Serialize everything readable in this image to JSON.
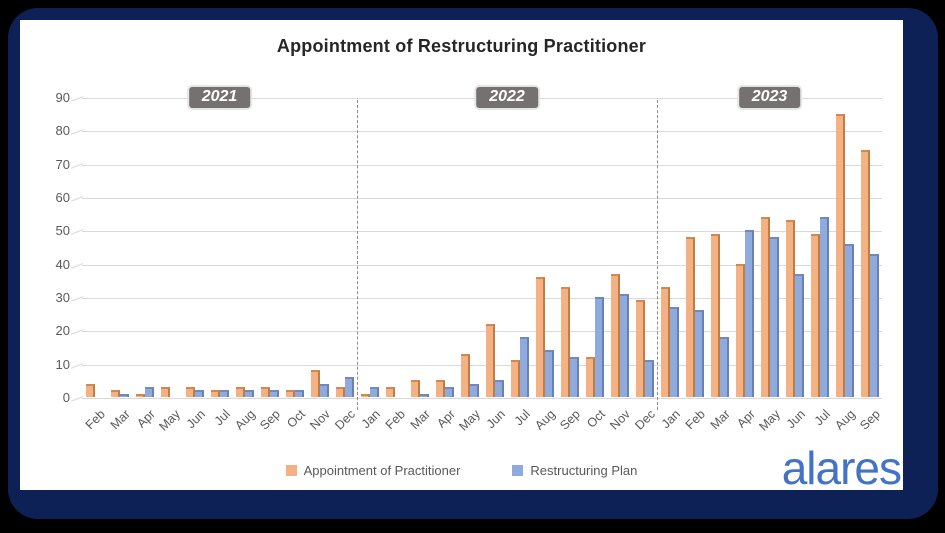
{
  "branding": {
    "logo_text": "alares"
  },
  "chart_data": {
    "type": "bar",
    "title": "Appointment of Restructuring Practitioner",
    "xlabel": "",
    "ylabel": "",
    "ylim": [
      0,
      90
    ],
    "ytick_step": 10,
    "yticks": [
      0,
      10,
      20,
      30,
      40,
      50,
      60,
      70,
      80,
      90
    ],
    "grid": true,
    "legend_position": "bottom",
    "year_groups": [
      {
        "label": "2021",
        "months": 11
      },
      {
        "label": "2022",
        "months": 12
      },
      {
        "label": "2023",
        "months": 9
      }
    ],
    "categories": [
      "Feb",
      "Mar",
      "Apr",
      "May",
      "Jun",
      "Jul",
      "Aug",
      "Sep",
      "Oct",
      "Nov",
      "Dec",
      "Jan",
      "Feb",
      "Mar",
      "Apr",
      "May",
      "Jun",
      "Jul",
      "Aug",
      "Sep",
      "Oct",
      "Nov",
      "Dec",
      "Jan",
      "Feb",
      "Mar",
      "Apr",
      "May",
      "Jun",
      "Jul",
      "Aug",
      "Sep"
    ],
    "series": [
      {
        "name": "Appointment of Practitioner",
        "color": "#F4B183",
        "values": [
          4,
          2,
          1,
          3,
          3,
          2,
          3,
          3,
          2,
          8,
          3,
          1,
          3,
          5,
          5,
          13,
          22,
          11,
          36,
          33,
          12,
          37,
          29,
          33,
          48,
          49,
          40,
          54,
          53,
          49,
          85,
          74
        ]
      },
      {
        "name": "Restructuring Plan",
        "color": "#8FAADC",
        "values": [
          0,
          1,
          3,
          0,
          2,
          2,
          2,
          2,
          2,
          4,
          6,
          3,
          0,
          1,
          3,
          4,
          5,
          18,
          14,
          12,
          30,
          31,
          11,
          27,
          26,
          18,
          50,
          48,
          37,
          54,
          46,
          43
        ]
      }
    ],
    "colors": {
      "grid": "#d9d9d9",
      "separator": "#8c8c8c",
      "axis_text": "#595959",
      "title_text": "#262626",
      "year_badge_bg": "#767171",
      "frame_navy": "#0e2156",
      "logo_blue": "#4472C4"
    }
  }
}
